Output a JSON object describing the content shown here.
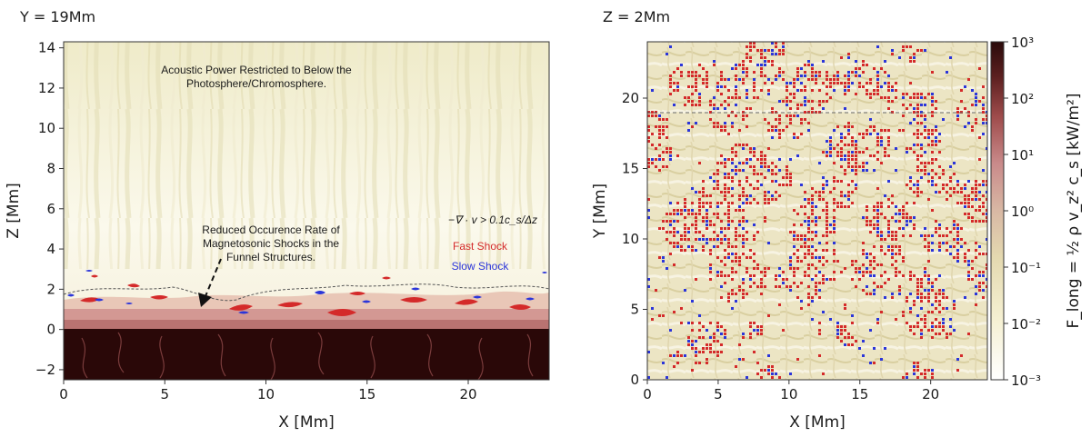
{
  "chart_data": [
    {
      "type": "heatmap",
      "title": "Y = 19Mm",
      "xlabel": "X [Mm]",
      "ylabel": "Z [Mm]",
      "xlim": [
        0,
        24
      ],
      "ylim": [
        -2.5,
        14.3
      ],
      "xticks": [
        "0",
        "5",
        "10",
        "15",
        "20"
      ],
      "yticks": [
        "−2",
        "0",
        "2",
        "4",
        "6",
        "8",
        "10",
        "12",
        "14"
      ],
      "annotations": {
        "power_line1": "Acoustic Power Restricted to Below the",
        "power_line2": "Photosphere/Chromosphere.",
        "reduced_line1": "Reduced Occurence Rate of",
        "reduced_line2": "Magnetosonic Shocks in the",
        "reduced_line3": "Funnel Structures.",
        "criterion": "−∇ · v > 0.1c_s/Δz",
        "fast": "Fast Shock",
        "slow": "Slow Shock"
      },
      "colors": {
        "fast": "#d42a2a",
        "slow": "#2b35d9"
      }
    },
    {
      "type": "heatmap",
      "title": "Z = 2Mm",
      "xlabel": "X [Mm]",
      "ylabel": "Y [Mm]",
      "xlim": [
        0,
        24
      ],
      "ylim": [
        0,
        24
      ],
      "xticks": [
        "0",
        "5",
        "10",
        "15",
        "20"
      ],
      "yticks": [
        "0",
        "5",
        "10",
        "15",
        "20"
      ],
      "colorbar": {
        "label": "F_long = ½ ρ v_z² c_s [kW/m²]",
        "ticks": [
          "10⁻³",
          "10⁻²",
          "10⁻¹",
          "10⁰",
          "10¹",
          "10²",
          "10³"
        ],
        "range": [
          0.001,
          1000
        ],
        "scale": "log",
        "colors": [
          "#ffffff",
          "#f5f0d2",
          "#e4d9b0",
          "#d8b8a4",
          "#c98a8a",
          "#9e4b4b",
          "#5a1f1f",
          "#2a0a0a"
        ]
      }
    }
  ]
}
